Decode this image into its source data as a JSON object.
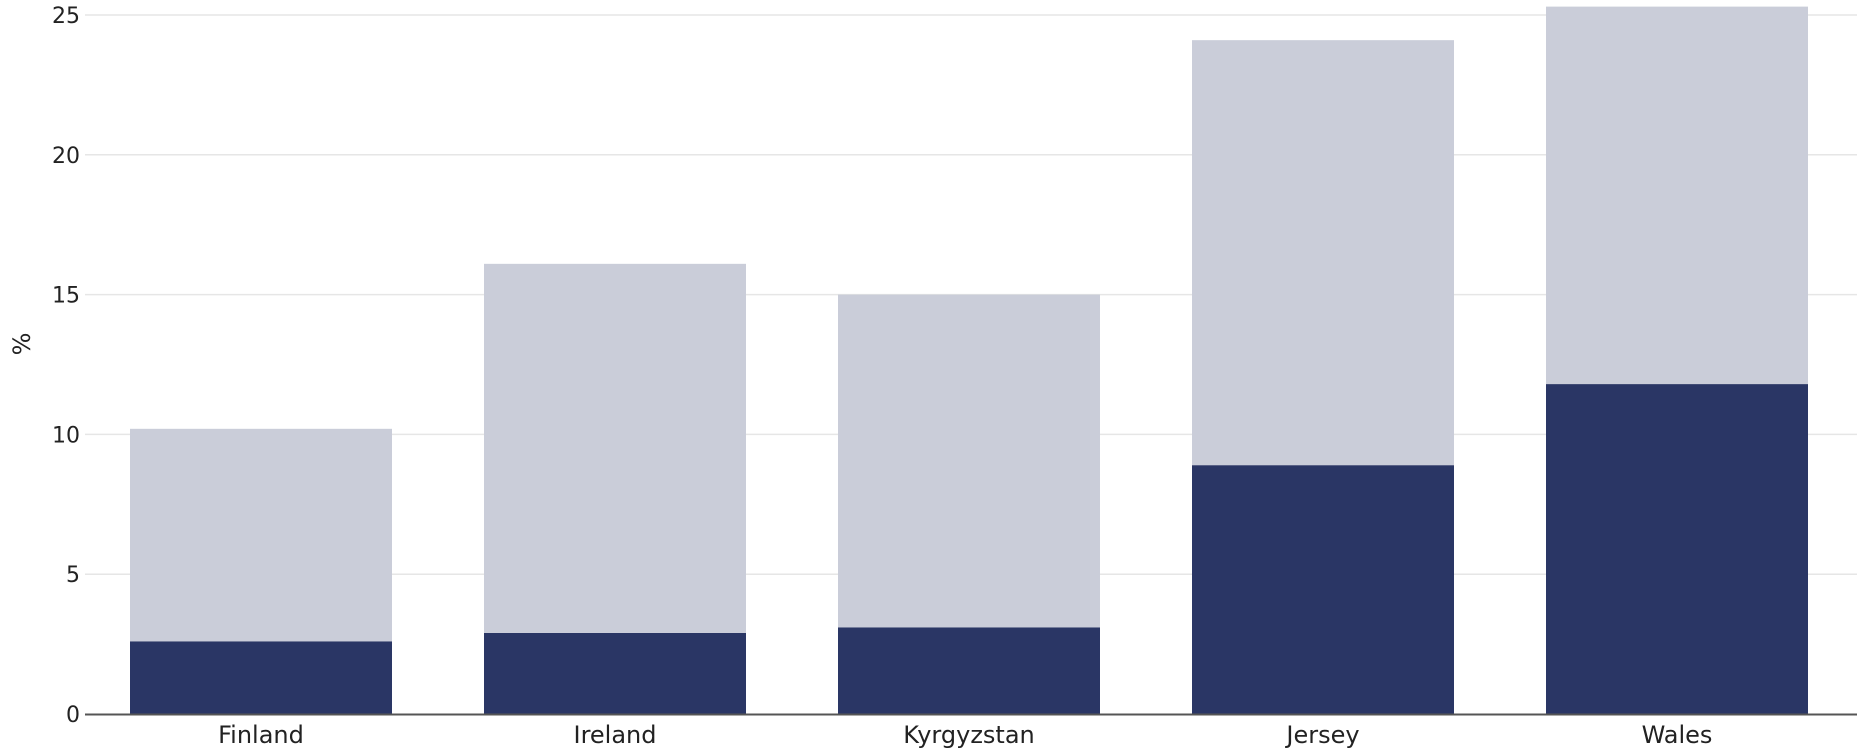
{
  "chart_data": {
    "type": "bar",
    "stacked": true,
    "title": "",
    "xlabel": "",
    "ylabel": "%",
    "ylim": [
      0,
      25.3
    ],
    "yticks": [
      0,
      5,
      10,
      15,
      20,
      25
    ],
    "grid": true,
    "legend": "none",
    "categories": [
      "Finland",
      "Ireland",
      "Kyrgyzstan",
      "Jersey",
      "Wales"
    ],
    "series": [
      {
        "values": [
          2.6,
          2.9,
          3.1,
          8.9,
          11.8
        ],
        "color": "#2a3665"
      },
      {
        "values": [
          7.6,
          13.2,
          11.9,
          15.2,
          13.5
        ],
        "color": "#cacdd9"
      }
    ],
    "totals": [
      10.2,
      16.1,
      15.0,
      24.1,
      25.3
    ]
  }
}
